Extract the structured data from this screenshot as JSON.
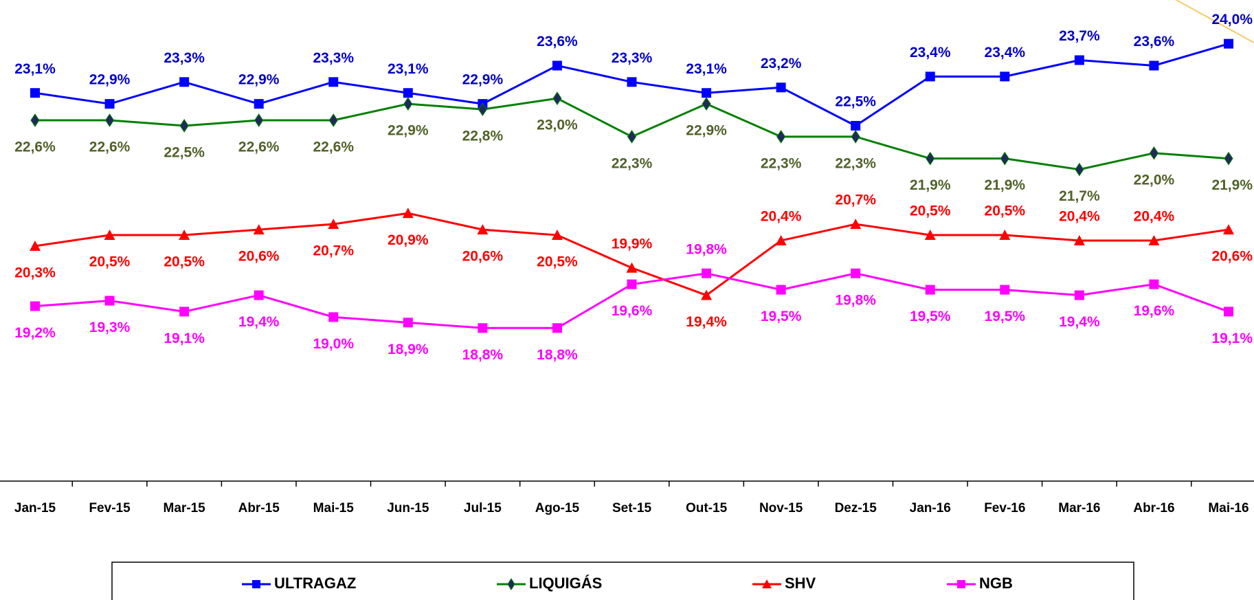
{
  "chart_data": {
    "type": "line",
    "categories": [
      "Jan-15",
      "Fev-15",
      "Mar-15",
      "Abr-15",
      "Mai-15",
      "Jun-15",
      "Jul-15",
      "Ago-15",
      "Set-15",
      "Out-15",
      "Nov-15",
      "Dez-15",
      "Jan-16",
      "Fev-16",
      "Mar-16",
      "Abr-16",
      "Mai-16"
    ],
    "ylim": [
      16,
      24.8
    ],
    "series": [
      {
        "name": "ULTRAGAZ",
        "color": "#0000ff",
        "marker": "square",
        "values": [
          23.1,
          22.9,
          23.3,
          22.9,
          23.3,
          23.1,
          22.9,
          23.6,
          23.3,
          23.1,
          23.2,
          22.5,
          23.4,
          23.4,
          23.7,
          23.6,
          24.0
        ],
        "value_labels": [
          "23,1%",
          "22,9%",
          "23,3%",
          "22,9%",
          "23,3%",
          "23,1%",
          "22,9%",
          "23,6%",
          "23,3%",
          "23,1%",
          "23,2%",
          "22,5%",
          "23,4%",
          "23,4%",
          "23,7%",
          "23,6%",
          "24,0%"
        ]
      },
      {
        "name": "LIQUIGÁS",
        "color": "#008000",
        "marker": "diamond",
        "values": [
          22.6,
          22.6,
          22.5,
          22.6,
          22.6,
          22.9,
          22.8,
          23.0,
          22.3,
          22.9,
          22.3,
          22.3,
          21.9,
          21.9,
          21.7,
          22.0,
          21.9
        ],
        "value_labels": [
          "22,6%",
          "22,6%",
          "22,5%",
          "22,6%",
          "22,6%",
          "22,9%",
          "22,8%",
          "23,0%",
          "22,3%",
          "22,9%",
          "22,3%",
          "22,3%",
          "21,9%",
          "21,9%",
          "21,7%",
          "22,0%",
          "21,9%"
        ]
      },
      {
        "name": "SHV",
        "color": "#ff0000",
        "marker": "triangle",
        "values": [
          20.3,
          20.5,
          20.5,
          20.6,
          20.7,
          20.9,
          20.6,
          20.5,
          19.9,
          19.4,
          20.4,
          20.7,
          20.5,
          20.5,
          20.4,
          20.4,
          20.6
        ],
        "value_labels": [
          "20,3%",
          "20,5%",
          "20,5%",
          "20,6%",
          "20,7%",
          "20,9%",
          "20,6%",
          "20,5%",
          "19,9%",
          "19,4%",
          "20,4%",
          "20,7%",
          "20,5%",
          "20,5%",
          "20,4%",
          "20,4%",
          "20,6%"
        ]
      },
      {
        "name": "NGB",
        "color": "#ff00ff",
        "marker": "square",
        "values": [
          19.2,
          19.3,
          19.1,
          19.4,
          19.0,
          18.9,
          18.8,
          18.8,
          19.6,
          19.8,
          19.5,
          19.8,
          19.5,
          19.5,
          19.4,
          19.6,
          19.1
        ],
        "value_labels": [
          "19,2%",
          "19,3%",
          "19,1%",
          "19,4%",
          "19,0%",
          "18,9%",
          "18,8%",
          "18,8%",
          "19,6%",
          "19,8%",
          "19,5%",
          "19,8%",
          "19,5%",
          "19,5%",
          "19,4%",
          "19,6%",
          "19,1%"
        ]
      }
    ],
    "legend": "bottom"
  }
}
